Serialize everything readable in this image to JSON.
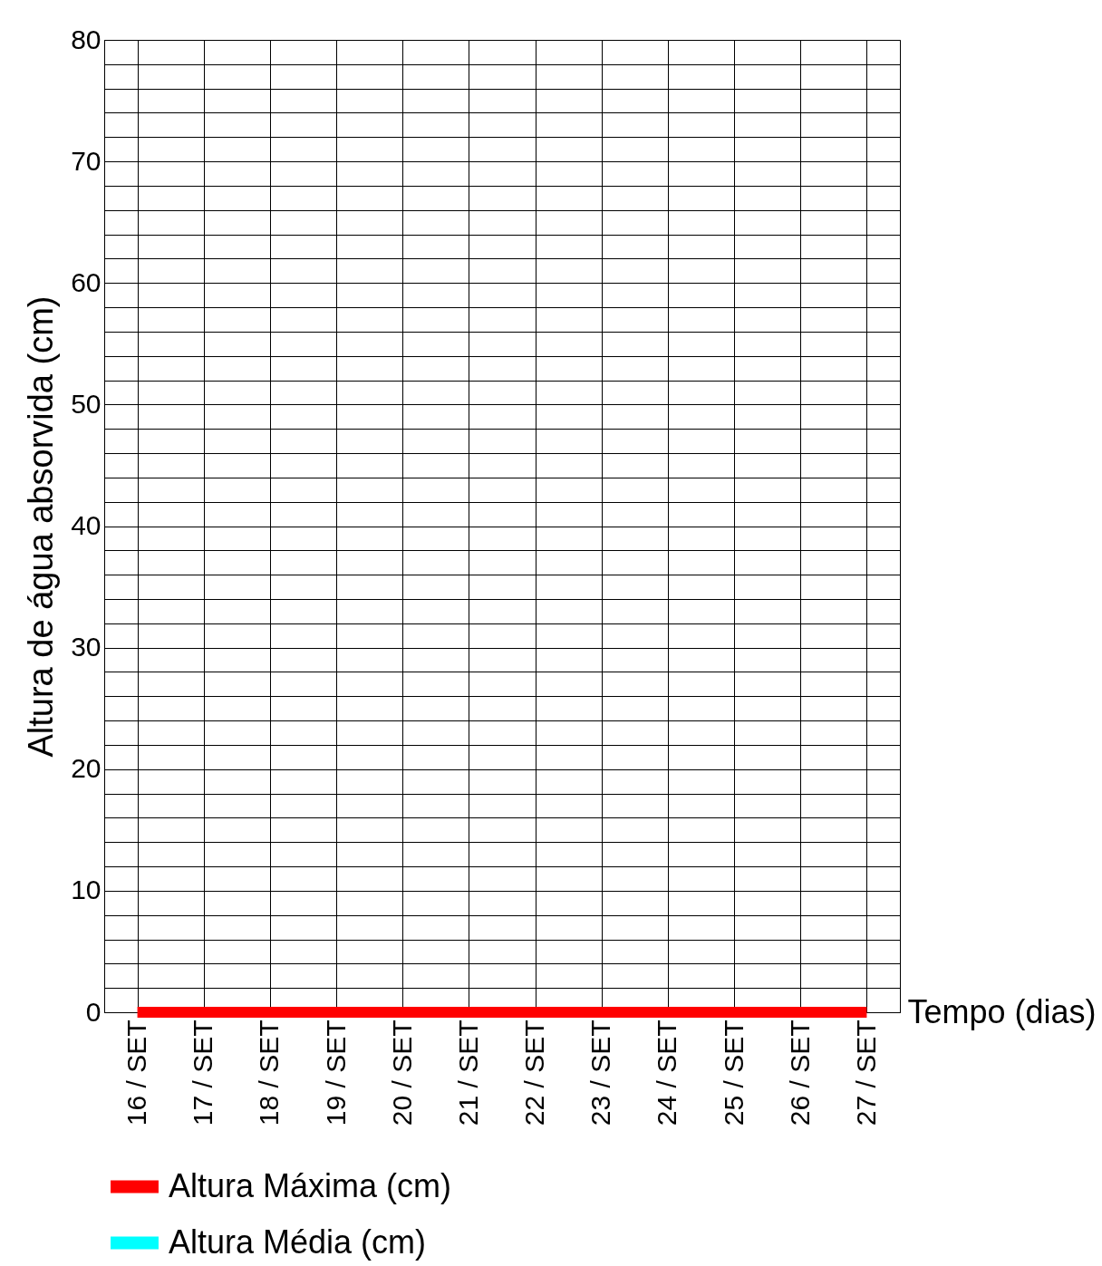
{
  "chart_data": {
    "type": "line",
    "xlabel": "Tempo (dias)",
    "ylabel": "Altura de água absorvida (cm)",
    "categories": [
      "16 / SET",
      "17 / SET",
      "18 / SET",
      "19 / SET",
      "20 / SET",
      "21 / SET",
      "22 / SET",
      "23 / SET",
      "24 / SET",
      "25 / SET",
      "26 / SET",
      "27 / SET"
    ],
    "series": [
      {
        "name": "Altura Máxima (cm)",
        "color": "#ff0000",
        "values": [
          0,
          0,
          0,
          0,
          0,
          0,
          0,
          0,
          0,
          0,
          0,
          0
        ]
      },
      {
        "name": "Altura Média (cm)",
        "color": "#00ffff",
        "values": [
          null,
          null,
          null,
          null,
          null,
          null,
          null,
          null,
          null,
          null,
          null,
          null
        ]
      }
    ],
    "ylim": [
      0,
      80
    ],
    "yticks": [
      0,
      {
        "value": 2,
        "label": null
      },
      {
        "value": 4,
        "label": null
      },
      {
        "value": 6,
        "label": null
      },
      {
        "value": 8,
        "label": null
      },
      10,
      {
        "value": 12,
        "label": null
      },
      {
        "value": 14,
        "label": null
      },
      {
        "value": 16,
        "label": null
      },
      {
        "value": 18,
        "label": null
      },
      20,
      {
        "value": 22,
        "label": null
      },
      {
        "value": 24,
        "label": null
      },
      {
        "value": 26,
        "label": null
      },
      {
        "value": 28,
        "label": null
      },
      30,
      {
        "value": 32,
        "label": null
      },
      {
        "value": 34,
        "label": null
      },
      {
        "value": 36,
        "label": null
      },
      {
        "value": 38,
        "label": null
      },
      40,
      {
        "value": 42,
        "label": null
      },
      {
        "value": 44,
        "label": null
      },
      {
        "value": 46,
        "label": null
      },
      {
        "value": 48,
        "label": null
      },
      50,
      {
        "value": 52,
        "label": null
      },
      {
        "value": 54,
        "label": null
      },
      {
        "value": 56,
        "label": null
      },
      {
        "value": 58,
        "label": null
      },
      60,
      {
        "value": 62,
        "label": null
      },
      {
        "value": 64,
        "label": null
      },
      {
        "value": 66,
        "label": null
      },
      {
        "value": 68,
        "label": null
      },
      70,
      {
        "value": 72,
        "label": null
      },
      {
        "value": 74,
        "label": null
      },
      {
        "value": 76,
        "label": null
      },
      {
        "value": 78,
        "label": null
      },
      80
    ],
    "grid": true,
    "legend": "bottom"
  }
}
